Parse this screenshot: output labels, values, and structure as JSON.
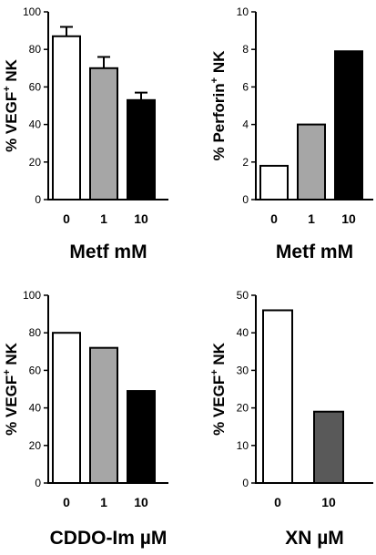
{
  "chart_data": [
    {
      "type": "bar",
      "ylabel_main": "% VEGF",
      "ylabel_sup": "+",
      "ylabel_tail": " NK",
      "xlabel": "Metf mM",
      "categories": [
        "0",
        "1",
        "10"
      ],
      "values": [
        87,
        70,
        53
      ],
      "errors": [
        5,
        6,
        4
      ],
      "colors": [
        "#ffffff",
        "#a6a6a6",
        "#000000"
      ],
      "ylim": [
        0,
        100
      ],
      "yticks": [
        "0",
        "20",
        "40",
        "60",
        "80",
        "100"
      ]
    },
    {
      "type": "bar",
      "ylabel_main": "% Perforin",
      "ylabel_sup": "+",
      "ylabel_tail": " NK",
      "xlabel": "Metf mM",
      "categories": [
        "0",
        "1",
        "10"
      ],
      "values": [
        1.8,
        4.0,
        7.9
      ],
      "colors": [
        "#ffffff",
        "#a6a6a6",
        "#000000"
      ],
      "ylim": [
        0,
        10
      ],
      "yticks": [
        "0",
        "2",
        "4",
        "6",
        "8",
        "10"
      ]
    },
    {
      "type": "bar",
      "ylabel_main": "% VEGF",
      "ylabel_sup": "+",
      "ylabel_tail": " NK",
      "xlabel": "CDDO-Im µM",
      "categories": [
        "0",
        "1",
        "10"
      ],
      "values": [
        80,
        72,
        49
      ],
      "colors": [
        "#ffffff",
        "#a6a6a6",
        "#000000"
      ],
      "ylim": [
        0,
        100
      ],
      "yticks": [
        "0",
        "20",
        "40",
        "60",
        "80",
        "100"
      ]
    },
    {
      "type": "bar",
      "ylabel_main": "% VEGF",
      "ylabel_sup": "+",
      "ylabel_tail": " NK",
      "xlabel": "XN µM",
      "categories": [
        "0",
        "10"
      ],
      "values": [
        46,
        19
      ],
      "colors": [
        "#ffffff",
        "#595959"
      ],
      "ylim": [
        0,
        50
      ],
      "yticks": [
        "0",
        "10",
        "20",
        "30",
        "40",
        "50"
      ]
    }
  ]
}
